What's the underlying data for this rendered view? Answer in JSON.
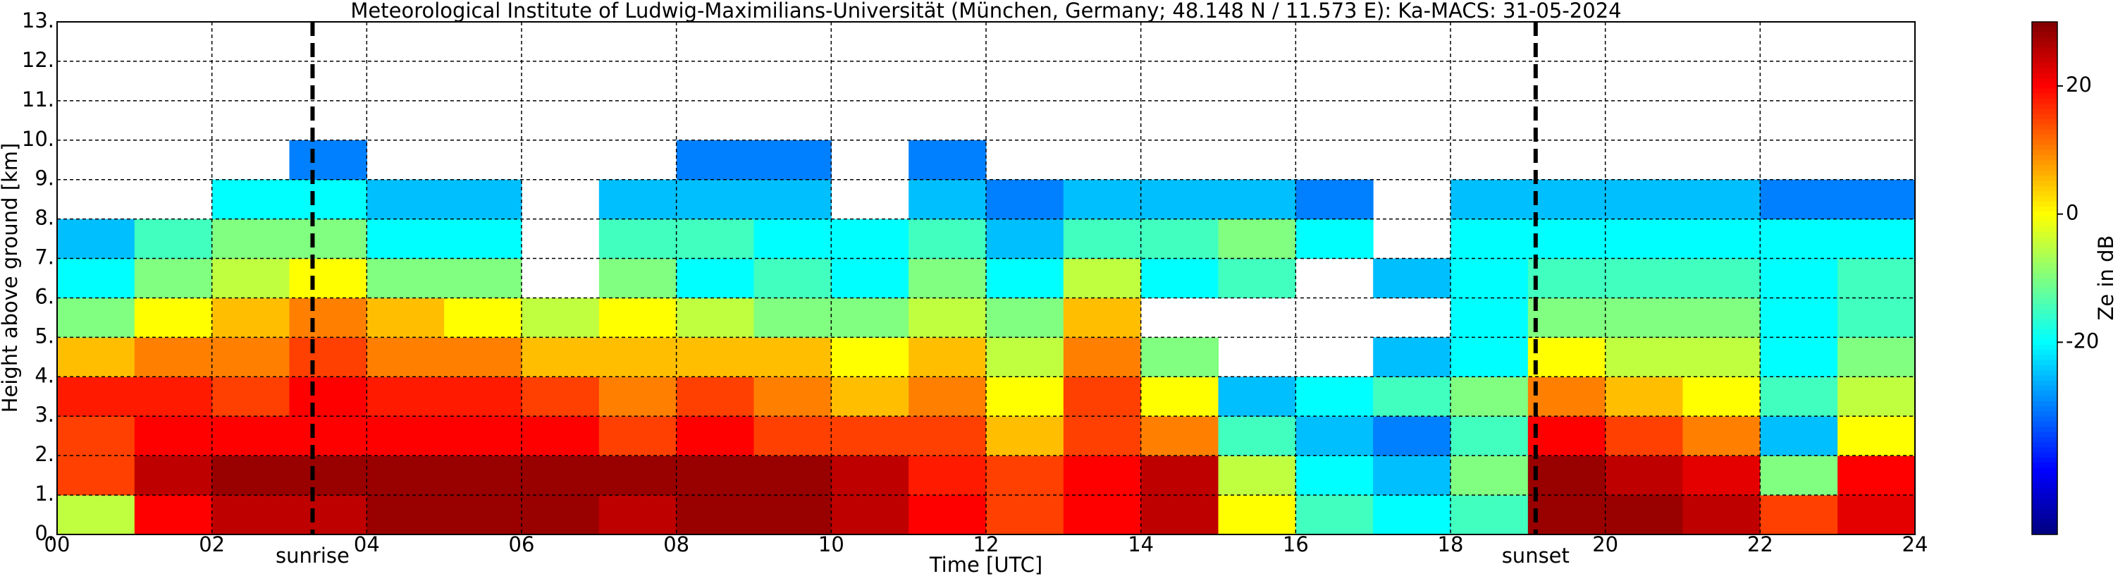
{
  "chart_data": {
    "type": "heatmap",
    "title": "Meteorological Institute of Ludwig-Maximilians-Universität (München, Germany; 48.148 N / 11.573 E):    Ka-MACS: 31-05-2024",
    "x_label": "Time [UTC]",
    "y_label": "Height above ground [km]",
    "colorbar_label": "Ze in dB",
    "colormap": "jet",
    "grid": true,
    "xlim": [
      0,
      24
    ],
    "ylim": [
      0,
      13
    ],
    "zlim": [
      -50,
      30
    ],
    "xticks": [
      {
        "value": 0,
        "label": "00"
      },
      {
        "value": 2,
        "label": "02"
      },
      {
        "value": 4,
        "label": "04"
      },
      {
        "value": 6,
        "label": "06"
      },
      {
        "value": 8,
        "label": "08"
      },
      10,
      12,
      14,
      16,
      18,
      20,
      22,
      24
    ],
    "yticks": [
      {
        "value": 0,
        "label": "0."
      },
      {
        "value": 1,
        "label": "1."
      },
      {
        "value": 2,
        "label": "2."
      },
      {
        "value": 3,
        "label": "3."
      },
      {
        "value": 4,
        "label": "4."
      },
      {
        "value": 5,
        "label": "5."
      },
      {
        "value": 6,
        "label": "6."
      },
      {
        "value": 7,
        "label": "7."
      },
      {
        "value": 8,
        "label": "8."
      },
      {
        "value": 9,
        "label": "9."
      },
      {
        "value": 10,
        "label": "10."
      },
      {
        "value": 11,
        "label": "11."
      },
      {
        "value": 12,
        "label": "12."
      },
      {
        "value": 13,
        "label": "13."
      }
    ],
    "zticks": [
      -20,
      0,
      20
    ],
    "annotations": [
      {
        "x": 3.3,
        "label": "sunrise"
      },
      {
        "x": 19.1,
        "label": "sunset"
      }
    ],
    "x_bins": [
      0,
      1,
      2,
      3,
      4,
      5,
      6,
      7,
      8,
      9,
      10,
      11,
      12,
      13,
      14,
      15,
      16,
      17,
      18,
      19,
      20,
      21,
      22,
      23,
      24
    ],
    "y_bins": [
      0,
      1,
      2,
      3,
      4,
      5,
      6,
      7,
      8,
      9,
      10
    ],
    "z": [
      [
        -5,
        20,
        25,
        25,
        28,
        28,
        28,
        25,
        28,
        28,
        25,
        20,
        15,
        20,
        25,
        0,
        -15,
        -20,
        -15,
        28,
        28,
        25,
        15,
        22
      ],
      [
        15,
        25,
        28,
        28,
        28,
        28,
        28,
        28,
        28,
        28,
        25,
        18,
        15,
        20,
        25,
        -5,
        -20,
        -25,
        -10,
        28,
        25,
        22,
        -10,
        20
      ],
      [
        15,
        20,
        20,
        20,
        20,
        20,
        20,
        15,
        20,
        15,
        15,
        15,
        5,
        15,
        10,
        -15,
        -25,
        -30,
        -15,
        20,
        15,
        10,
        -25,
        0
      ],
      [
        18,
        18,
        15,
        20,
        18,
        18,
        15,
        10,
        15,
        10,
        5,
        10,
        0,
        15,
        0,
        -25,
        -20,
        -15,
        -10,
        10,
        5,
        0,
        -15,
        -5
      ],
      [
        5,
        10,
        10,
        15,
        10,
        10,
        5,
        5,
        5,
        5,
        0,
        5,
        -5,
        10,
        -10,
        null,
        null,
        -25,
        -20,
        0,
        -5,
        -5,
        -20,
        -10
      ],
      [
        -10,
        0,
        5,
        10,
        5,
        0,
        -5,
        0,
        -5,
        -10,
        -10,
        -5,
        -10,
        5,
        null,
        null,
        null,
        null,
        -20,
        -10,
        -10,
        -10,
        -20,
        -15
      ],
      [
        -20,
        -10,
        -5,
        0,
        -10,
        -10,
        null,
        -10,
        -20,
        -15,
        -20,
        -10,
        -20,
        -5,
        -20,
        -15,
        null,
        -25,
        -20,
        -15,
        -15,
        -15,
        -20,
        -15
      ],
      [
        -25,
        -15,
        -10,
        -10,
        -20,
        -20,
        null,
        -15,
        -15,
        -20,
        -20,
        -15,
        -25,
        -15,
        -15,
        -10,
        -20,
        null,
        -20,
        -20,
        -20,
        -20,
        -20,
        -20
      ],
      [
        null,
        null,
        -20,
        -20,
        -25,
        -25,
        null,
        -25,
        -25,
        -25,
        null,
        -25,
        -30,
        -25,
        -25,
        -25,
        -30,
        null,
        -25,
        -25,
        -25,
        -25,
        -30,
        -30
      ],
      [
        null,
        null,
        null,
        -30,
        null,
        null,
        null,
        null,
        -30,
        -30,
        null,
        -30,
        null,
        null,
        null,
        null,
        null,
        null,
        null,
        null,
        null,
        null,
        null,
        null
      ]
    ]
  }
}
